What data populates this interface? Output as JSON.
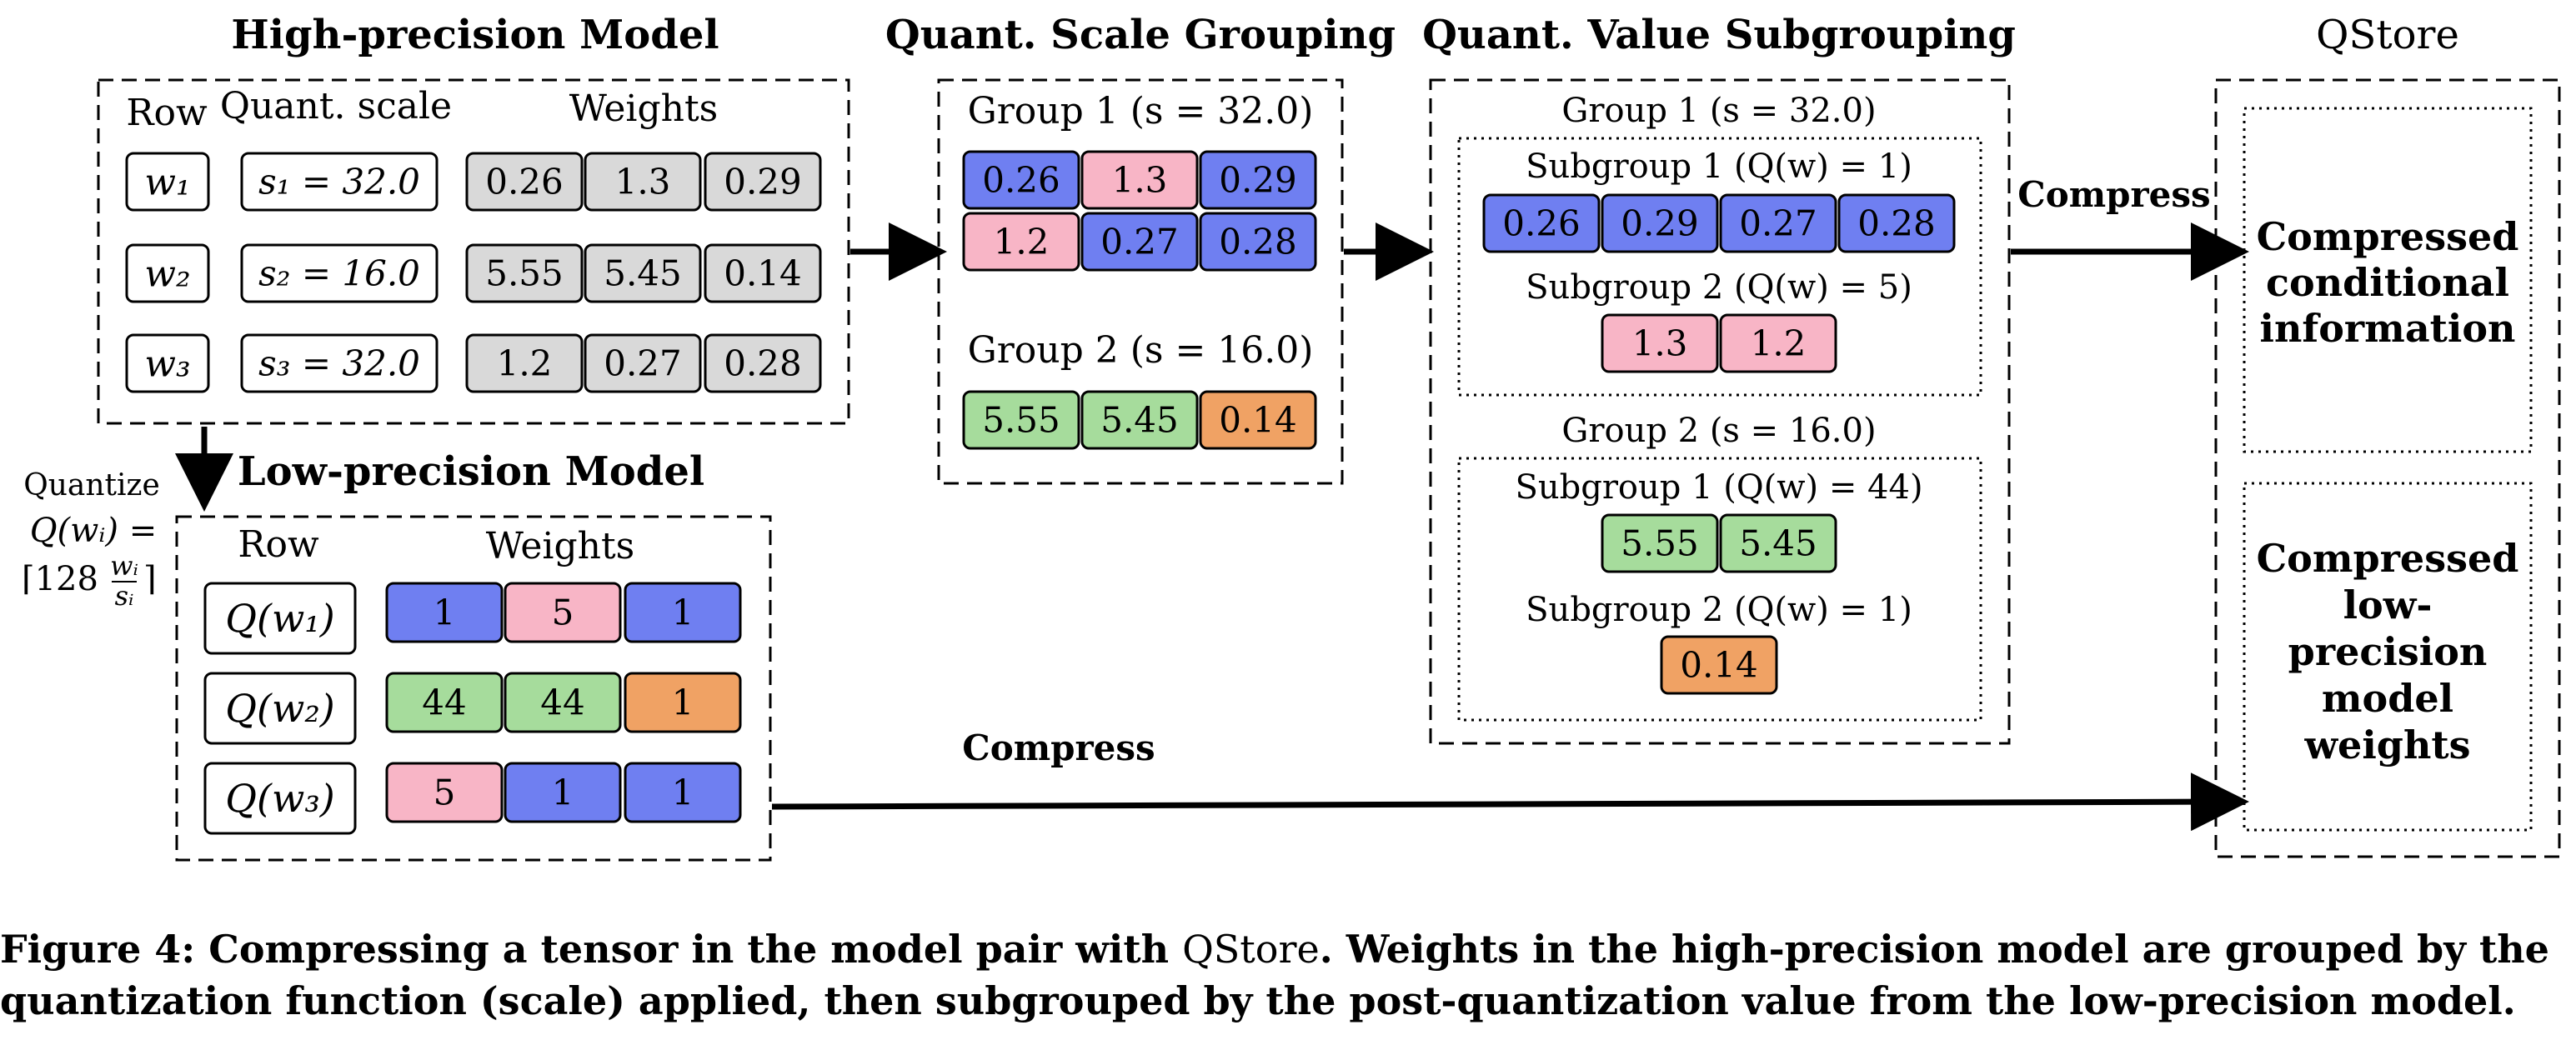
{
  "colors": {
    "blue": "#6f7ff1",
    "pink": "#f8b5c6",
    "green": "#a6dc9c",
    "orange": "#f0a264",
    "gray": "#d9d9d9"
  },
  "high_precision": {
    "title": "High-precision Model",
    "col_row": "Row",
    "col_scale": "Quant. scale",
    "col_weights": "Weights",
    "rows": [
      {
        "row": "w₁",
        "scale": "s₁ = 32.0",
        "weights": [
          {
            "v": "0.26",
            "c": "gray"
          },
          {
            "v": "1.3",
            "c": "gray"
          },
          {
            "v": "0.29",
            "c": "gray"
          }
        ]
      },
      {
        "row": "w₂",
        "scale": "s₂ = 16.0",
        "weights": [
          {
            "v": "5.55",
            "c": "gray"
          },
          {
            "v": "5.45",
            "c": "gray"
          },
          {
            "v": "0.14",
            "c": "gray"
          }
        ]
      },
      {
        "row": "w₃",
        "scale": "s₃ = 32.0",
        "weights": [
          {
            "v": "1.2",
            "c": "gray"
          },
          {
            "v": "0.27",
            "c": "gray"
          },
          {
            "v": "0.28",
            "c": "gray"
          }
        ]
      }
    ]
  },
  "quantize": {
    "line1": "Quantize",
    "line2": "Q(wᵢ) =",
    "line3_pre": "⌈128",
    "frac_num": "wᵢ",
    "frac_den": "sᵢ",
    "line3_post": "⌉"
  },
  "low_precision": {
    "title": "Low-precision Model",
    "col_row": "Row",
    "col_weights": "Weights",
    "rows": [
      {
        "row": "Q(w₁)",
        "weights": [
          {
            "v": "1",
            "c": "blue"
          },
          {
            "v": "5",
            "c": "pink"
          },
          {
            "v": "1",
            "c": "blue"
          }
        ]
      },
      {
        "row": "Q(w₂)",
        "weights": [
          {
            "v": "44",
            "c": "green"
          },
          {
            "v": "44",
            "c": "green"
          },
          {
            "v": "1",
            "c": "orange"
          }
        ]
      },
      {
        "row": "Q(w₃)",
        "weights": [
          {
            "v": "5",
            "c": "pink"
          },
          {
            "v": "1",
            "c": "blue"
          },
          {
            "v": "1",
            "c": "blue"
          }
        ]
      }
    ]
  },
  "scale_grouping": {
    "title": "Quant. Scale Grouping",
    "group1_label": "Group 1 (s = 32.0)",
    "group1_rows": [
      [
        {
          "v": "0.26",
          "c": "blue"
        },
        {
          "v": "1.3",
          "c": "pink"
        },
        {
          "v": "0.29",
          "c": "blue"
        }
      ],
      [
        {
          "v": "1.2",
          "c": "pink"
        },
        {
          "v": "0.27",
          "c": "blue"
        },
        {
          "v": "0.28",
          "c": "blue"
        }
      ]
    ],
    "group2_label": "Group 2 (s = 16.0)",
    "group2_rows": [
      [
        {
          "v": "5.55",
          "c": "green"
        },
        {
          "v": "5.45",
          "c": "green"
        },
        {
          "v": "0.14",
          "c": "orange"
        }
      ]
    ]
  },
  "value_subgrouping": {
    "title": "Quant. Value Subgrouping",
    "group1_label": "Group 1 (s = 32.0)",
    "g1_sub1_label": "Subgroup 1 (Q(w) = 1)",
    "g1_sub1_cells": [
      {
        "v": "0.26",
        "c": "blue"
      },
      {
        "v": "0.29",
        "c": "blue"
      },
      {
        "v": "0.27",
        "c": "blue"
      },
      {
        "v": "0.28",
        "c": "blue"
      }
    ],
    "g1_sub2_label": "Subgroup 2 (Q(w) = 5)",
    "g1_sub2_cells": [
      {
        "v": "1.3",
        "c": "pink"
      },
      {
        "v": "1.2",
        "c": "pink"
      }
    ],
    "group2_label": "Group 2 (s = 16.0)",
    "g2_sub1_label": "Subgroup 1 (Q(w) = 44)",
    "g2_sub1_cells": [
      {
        "v": "5.55",
        "c": "green"
      },
      {
        "v": "5.45",
        "c": "green"
      }
    ],
    "g2_sub2_label": "Subgroup 2 (Q(w) = 1)",
    "g2_sub2_cells": [
      {
        "v": "0.14",
        "c": "orange"
      }
    ]
  },
  "compress_label_top": "Compress",
  "compress_label_bottom": "Compress",
  "qstore": {
    "title": "QStore",
    "box1_lines": [
      "Compressed",
      "conditional",
      "information"
    ],
    "box2_lines": [
      "Compressed",
      "low-",
      "precision",
      "model",
      "weights"
    ]
  },
  "caption": {
    "prefix": "Figure 4: Compressing a tensor in the model pair with ",
    "name": "QStore",
    "rest": ". Weights in the high-precision model are grouped by the quantization function (scale) applied, then subgrouped by the post-quantization value from the low-precision model."
  }
}
